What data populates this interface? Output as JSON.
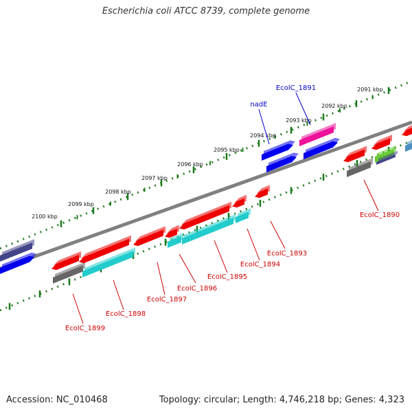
{
  "title": "Escherichia coli ATCC 8739, complete genome",
  "footer": {
    "accession": "Accession: NC_010468",
    "summary": "Topology: circular; Length: 4,746,218 bp; Genes: 4,323"
  },
  "ruler_ticks": [
    "2091 kbp",
    "2092 kbp",
    "2093 kbp",
    "2094 kbp",
    "2095 kbp",
    "2096 kbp",
    "2097 kbp",
    "2098 kbp",
    "2099 kbp",
    "2100 kbp"
  ],
  "gene_labels": [
    {
      "text": "EcolC_1891",
      "color": "#0000cc"
    },
    {
      "text": "nadE",
      "color": "#0000cc"
    },
    {
      "text": "EcolC_1890",
      "color": "#cc0000"
    },
    {
      "text": "EcolC_1893",
      "color": "#cc0000"
    },
    {
      "text": "EcolC_1894",
      "color": "#cc0000"
    },
    {
      "text": "EcolC_1895",
      "color": "#cc0000"
    },
    {
      "text": "EcolC_1896",
      "color": "#cc0000"
    },
    {
      "text": "EcolC_1897",
      "color": "#cc0000"
    },
    {
      "text": "EcolC_1898",
      "color": "#cc0000"
    },
    {
      "text": "EcolC_1899",
      "color": "#cc0000"
    }
  ],
  "colors": {
    "backbone": "#808080",
    "ruler_dot": "#2a7f2a",
    "ruler_tick": "#1a7a1a",
    "red_gene": "#ee0000",
    "blue_gene": "#0000ee",
    "cyan_gene": "#22cccc",
    "gray_gene": "#666666",
    "magenta_gene": "#ee1199",
    "navy_gene": "#444488",
    "label_line_red": "#cc0000",
    "label_line_blue": "#0000cc"
  }
}
